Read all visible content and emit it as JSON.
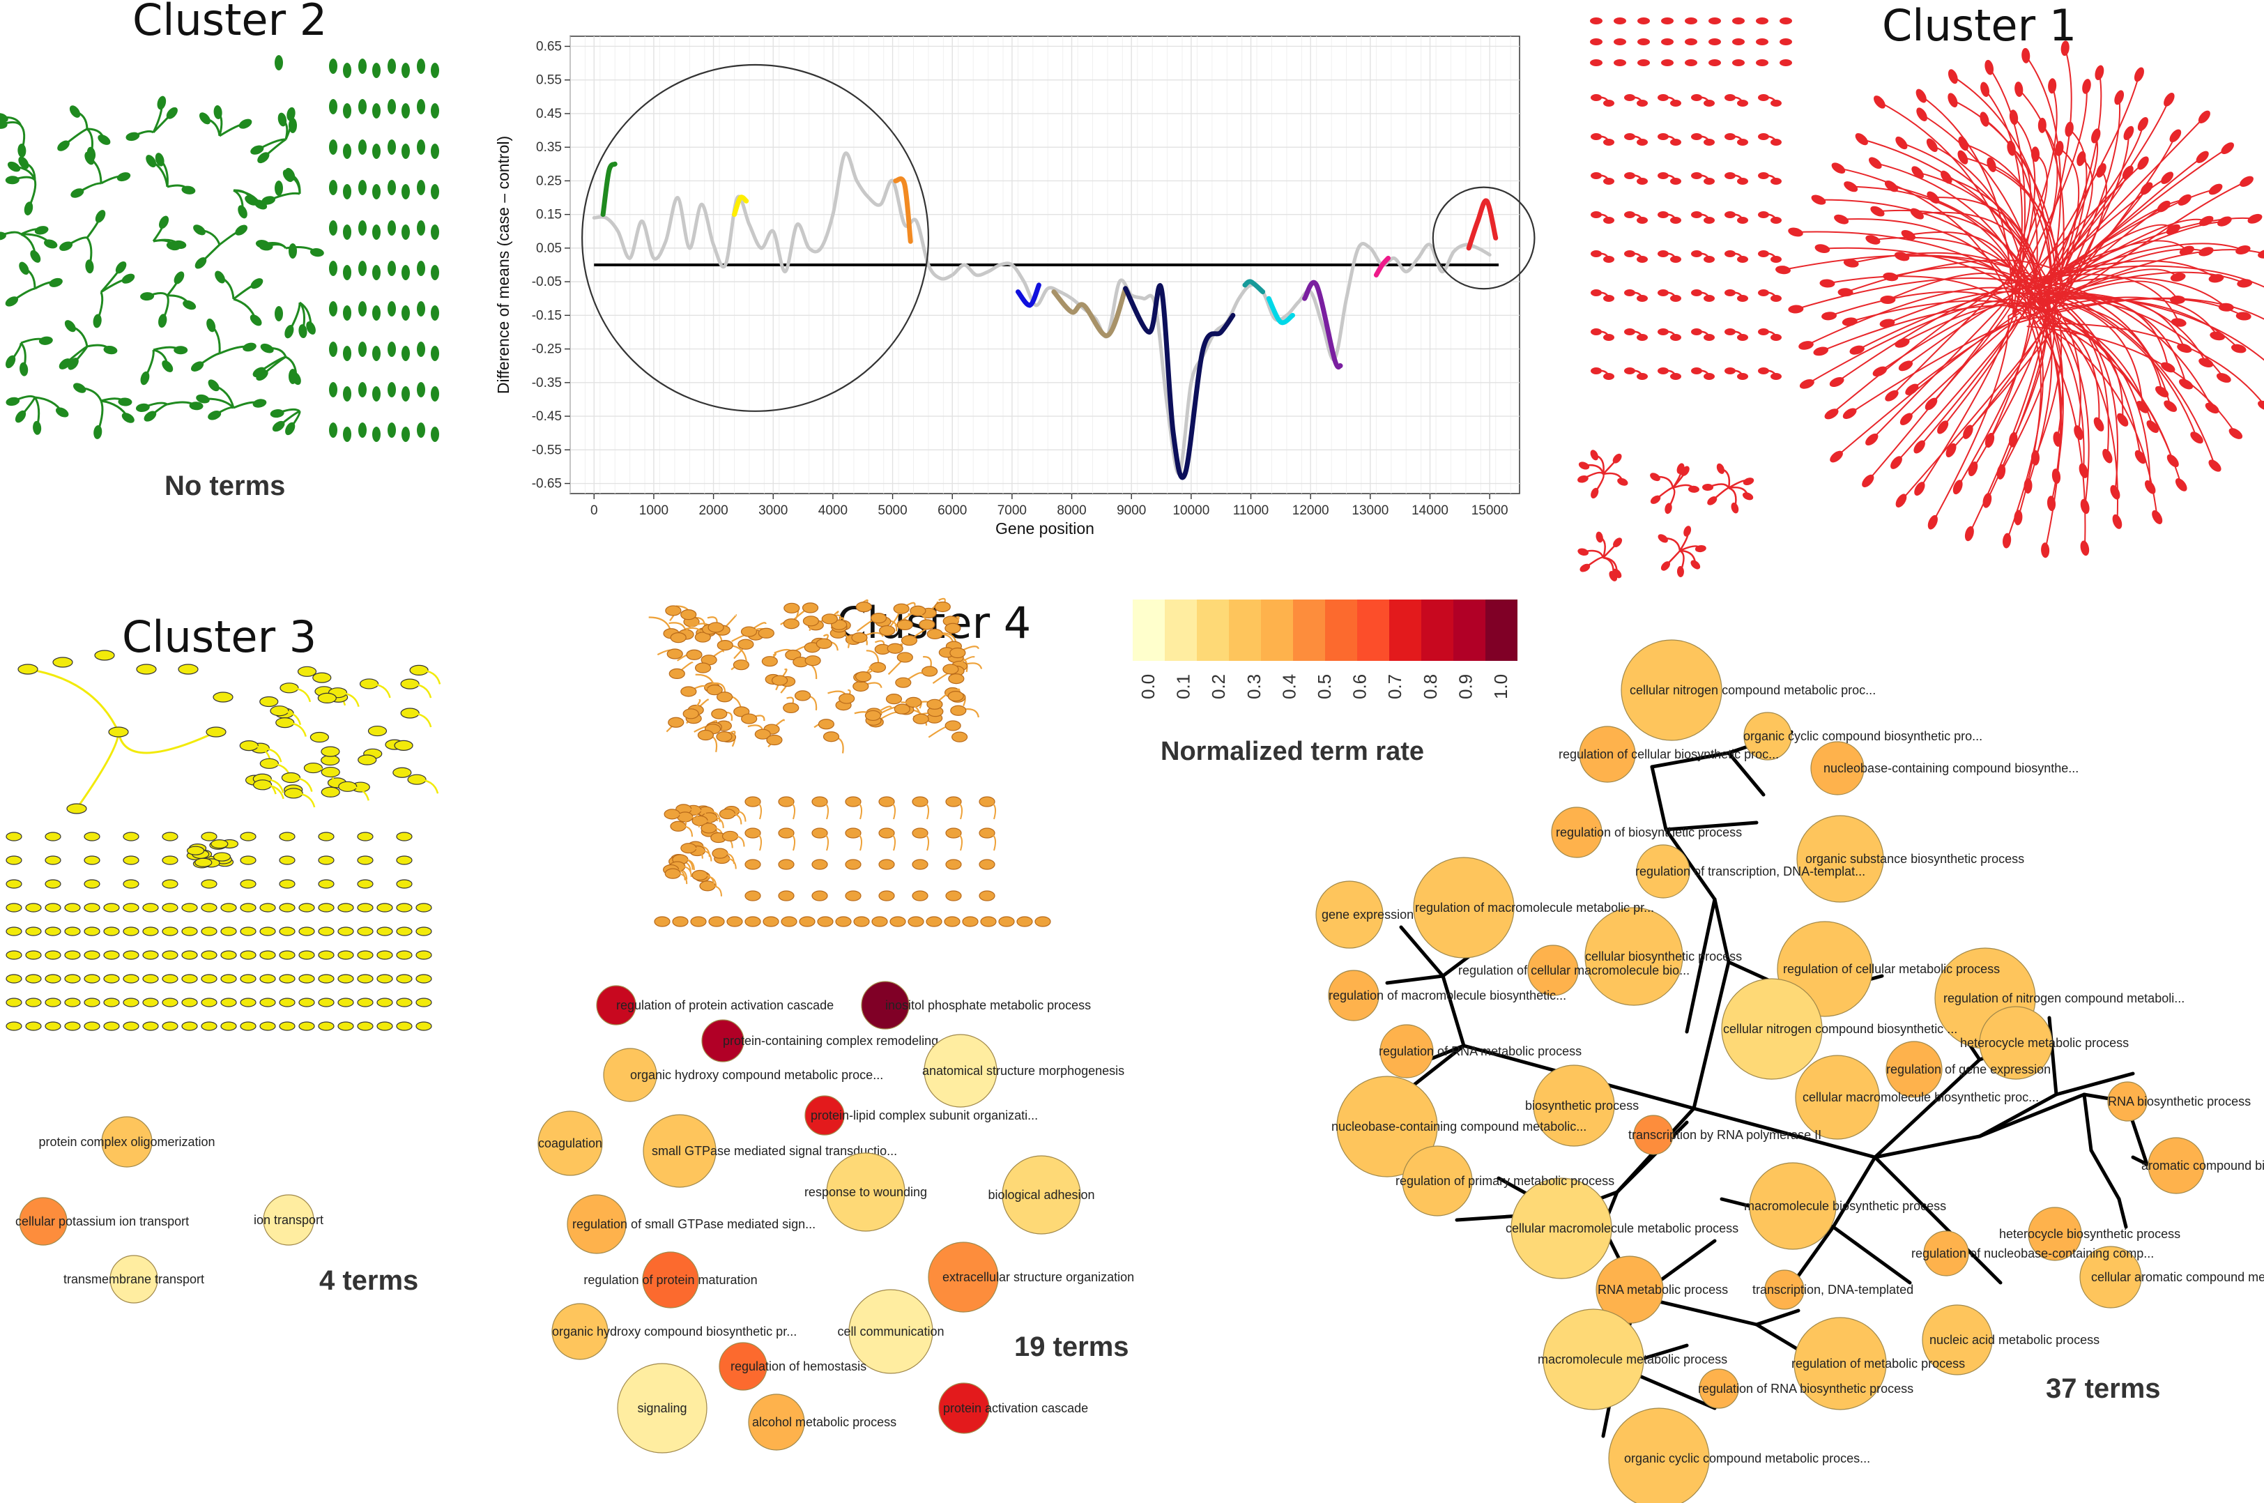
{
  "titles": {
    "cluster1": "Cluster 1",
    "cluster2": "Cluster 2",
    "cluster3": "Cluster 3",
    "cluster4": "Cluster 4"
  },
  "counts": {
    "cluster2": "No terms",
    "cluster3": "4 terms",
    "cluster4": "19 terms",
    "cluster1": "37 terms"
  },
  "colors": {
    "cluster1": "#e8262a",
    "cluster2": "#1f8a1f",
    "cluster3": "#f2ea0a",
    "cluster4": "#eea23a",
    "scale": [
      "#ffffcc",
      "#ffeda0",
      "#fed976",
      "#fec55c",
      "#feb24c",
      "#fd8d3c",
      "#fc6a2e",
      "#fc4e2a",
      "#e31a1c",
      "#c8081f",
      "#b10026",
      "#800026"
    ]
  },
  "legend": {
    "title": "Normalized term rate",
    "ticks": [
      "0.0",
      "0.1",
      "0.2",
      "0.3",
      "0.4",
      "0.5",
      "0.6",
      "0.7",
      "0.8",
      "0.9",
      "1.0"
    ]
  },
  "chart_data": {
    "type": "line",
    "xlabel": "Gene position",
    "ylabel": "Difference of means (case – control)",
    "xlim": [
      -400,
      15500
    ],
    "ylim": [
      -0.68,
      0.68
    ],
    "xticks": [
      0,
      1000,
      2000,
      3000,
      4000,
      5000,
      6000,
      7000,
      8000,
      9000,
      10000,
      11000,
      12000,
      13000,
      14000,
      15000
    ],
    "yticks": [
      0.65,
      0.55,
      0.45,
      0.35,
      0.25,
      0.15,
      0.05,
      -0.05,
      -0.15,
      -0.25,
      -0.35,
      -0.45,
      -0.55,
      -0.65
    ],
    "ytick_labels": [
      "0.65",
      "0.55",
      "0.45",
      "0.35",
      "0.25",
      "0.15",
      "0.05",
      "-0.05",
      "-0.15",
      "-0.25",
      "-0.35",
      "-0.45",
      "-0.55",
      "-0.65"
    ],
    "baseline": {
      "x": [
        0,
        15150
      ],
      "y": 0.0
    },
    "series": [
      {
        "name": "background",
        "color": "#c8c8c8",
        "x": [
          0,
          200,
          400,
          600,
          800,
          1000,
          1200,
          1400,
          1600,
          1800,
          2000,
          2200,
          2400,
          2600,
          2800,
          3000,
          3200,
          3400,
          3600,
          3800,
          4000,
          4200,
          4400,
          4600,
          4800,
          5000,
          5200,
          5400,
          5600,
          5800,
          6000,
          6200,
          6400,
          6600,
          6800,
          7000,
          7200,
          7400,
          7600,
          7800,
          8000,
          8200,
          8400,
          8600,
          8800,
          9000,
          9200,
          9400,
          9600,
          9800,
          10000,
          10200,
          10400,
          10600,
          10800,
          11000,
          11200,
          11400,
          11600,
          11800,
          12000,
          12200,
          12400,
          12600,
          12800,
          13000,
          13200,
          13400,
          13600,
          13800,
          14000,
          14200,
          14400,
          14600,
          14800,
          15000
        ],
        "y": [
          0.14,
          0.14,
          0.1,
          0.02,
          0.13,
          0.02,
          0.07,
          0.2,
          0.05,
          0.18,
          0.06,
          0.0,
          0.2,
          0.12,
          0.05,
          0.1,
          -0.02,
          0.12,
          0.05,
          0.05,
          0.15,
          0.33,
          0.25,
          0.2,
          0.18,
          0.25,
          0.12,
          0.13,
          0.0,
          -0.04,
          -0.03,
          0.0,
          -0.03,
          -0.02,
          0.0,
          0.0,
          -0.05,
          -0.12,
          -0.07,
          -0.08,
          -0.1,
          -0.13,
          -0.16,
          -0.21,
          -0.05,
          -0.09,
          -0.1,
          -0.12,
          -0.42,
          -0.62,
          -0.35,
          -0.27,
          -0.2,
          -0.17,
          -0.1,
          -0.06,
          -0.08,
          -0.16,
          -0.15,
          -0.11,
          -0.08,
          -0.18,
          -0.28,
          -0.1,
          0.05,
          0.05,
          0.0,
          0.02,
          -0.02,
          0.02,
          0.06,
          -0.02,
          0.04,
          0.06,
          0.05,
          0.03
        ]
      },
      {
        "name": "green",
        "color": "#1f8a1f",
        "x": [
          150,
          250,
          350
        ],
        "y": [
          0.15,
          0.28,
          0.3
        ]
      },
      {
        "name": "yellow",
        "color": "#ffee00",
        "x": [
          2350,
          2450,
          2550
        ],
        "y": [
          0.15,
          0.2,
          0.19
        ]
      },
      {
        "name": "orange",
        "color": "#f28a22",
        "x": [
          5050,
          5200,
          5300
        ],
        "y": [
          0.25,
          0.24,
          0.07
        ]
      },
      {
        "name": "blue",
        "color": "#1010dd",
        "x": [
          7100,
          7300,
          7450
        ],
        "y": [
          -0.08,
          -0.12,
          -0.06
        ]
      },
      {
        "name": "tan",
        "color": "#a89268",
        "x": [
          7700,
          8000,
          8200,
          8600,
          8900
        ],
        "y": [
          -0.08,
          -0.14,
          -0.12,
          -0.21,
          -0.07
        ]
      },
      {
        "name": "navy",
        "color": "#0c0f5a",
        "x": [
          8900,
          9300,
          9500,
          9700,
          9900,
          10200,
          10500,
          10700
        ],
        "y": [
          -0.07,
          -0.2,
          -0.07,
          -0.5,
          -0.62,
          -0.25,
          -0.2,
          -0.15
        ]
      },
      {
        "name": "teal",
        "color": "#169a9a",
        "x": [
          10900,
          11000,
          11200
        ],
        "y": [
          -0.06,
          -0.05,
          -0.08
        ]
      },
      {
        "name": "cyan",
        "color": "#00d8e8",
        "x": [
          11300,
          11500,
          11700
        ],
        "y": [
          -0.1,
          -0.17,
          -0.15
        ]
      },
      {
        "name": "purple",
        "color": "#7a1fa0",
        "x": [
          11900,
          12100,
          12400,
          12500
        ],
        "y": [
          -0.1,
          -0.06,
          -0.28,
          -0.3
        ]
      },
      {
        "name": "magenta",
        "color": "#ee1a8a",
        "x": [
          13100,
          13200,
          13300
        ],
        "y": [
          -0.03,
          0.0,
          0.02
        ]
      },
      {
        "name": "red",
        "color": "#e8262a",
        "x": [
          14650,
          14800,
          14950,
          15100
        ],
        "y": [
          0.05,
          0.13,
          0.19,
          0.08
        ]
      }
    ],
    "annotations": [
      {
        "type": "circle",
        "label": "left cluster circle",
        "cx_data": 2700,
        "cy_data": 0.08,
        "r_data": 2900
      },
      {
        "type": "circle",
        "label": "right cluster circle",
        "cx_data": 14900,
        "cy_data": 0.08,
        "r_data": 850
      }
    ]
  },
  "cluster3_terms": [
    {
      "label": "protein complex oligomerization",
      "rate": 0.25
    },
    {
      "label": "cellular potassium ion transport",
      "rate": 0.45
    },
    {
      "label": "ion transport",
      "rate": 0.1
    },
    {
      "label": "transmembrane transport",
      "rate": 0.1
    }
  ],
  "cluster4_terms": [
    {
      "label": "regulation of protein activation cascade",
      "rate": 0.8
    },
    {
      "label": "inositol phosphate metabolic process",
      "rate": 1.0
    },
    {
      "label": "protein-containing complex remodeling",
      "rate": 0.9
    },
    {
      "label": "organic hydroxy compound metabolic proce...",
      "rate": 0.25
    },
    {
      "label": "anatomical structure morphogenesis",
      "rate": 0.1
    },
    {
      "label": "protein-lipid complex subunit organizati...",
      "rate": 0.7
    },
    {
      "label": "coagulation",
      "rate": 0.3
    },
    {
      "label": "small GTPase mediated signal transductio...",
      "rate": 0.25
    },
    {
      "label": "response to wounding",
      "rate": 0.2
    },
    {
      "label": "biological adhesion",
      "rate": 0.2
    },
    {
      "label": "regulation of small GTPase mediated sign...",
      "rate": 0.4
    },
    {
      "label": "regulation of protein maturation",
      "rate": 0.55
    },
    {
      "label": "extracellular structure organization",
      "rate": 0.45
    },
    {
      "label": "organic hydroxy compound biosynthetic pr...",
      "rate": 0.25
    },
    {
      "label": "cell communication",
      "rate": 0.1
    },
    {
      "label": "regulation of hemostasis",
      "rate": 0.55
    },
    {
      "label": "signaling",
      "rate": 0.1
    },
    {
      "label": "alcohol metabolic process",
      "rate": 0.4
    },
    {
      "label": "protein activation cascade",
      "rate": 0.7
    }
  ],
  "cluster1_terms": [
    {
      "label": "cellular nitrogen compound metabolic proc...",
      "rate": 0.25
    },
    {
      "label": "regulation of cellular biosynthetic proc...",
      "rate": 0.35
    },
    {
      "label": "organic cyclic compound biosynthetic pro...",
      "rate": 0.3
    },
    {
      "label": "nucleobase-containing compound biosynthe...",
      "rate": 0.35
    },
    {
      "label": "regulation of biosynthetic process",
      "rate": 0.35
    },
    {
      "label": "organic substance biosynthetic process",
      "rate": 0.25
    },
    {
      "label": "regulation of transcription, DNA-templat...",
      "rate": 0.3
    },
    {
      "label": "gene expression",
      "rate": 0.25
    },
    {
      "label": "regulation of macromolecule metabolic pr...",
      "rate": 0.25
    },
    {
      "label": "cellular biosynthetic process",
      "rate": 0.25
    },
    {
      "label": "regulation of cellular macromolecule bio...",
      "rate": 0.35
    },
    {
      "label": "regulation of cellular metabolic process",
      "rate": 0.25
    },
    {
      "label": "regulation of macromolecule biosynthetic...",
      "rate": 0.35
    },
    {
      "label": "regulation of nitrogen compound metaboli...",
      "rate": 0.25
    },
    {
      "label": "cellular nitrogen compound biosynthetic ...",
      "rate": 0.2
    },
    {
      "label": "regulation of RNA metabolic process",
      "rate": 0.35
    },
    {
      "label": "heterocycle metabolic process",
      "rate": 0.25
    },
    {
      "label": "regulation of gene expression",
      "rate": 0.35
    },
    {
      "label": "biosynthetic process",
      "rate": 0.25
    },
    {
      "label": "cellular macromolecule biosynthetic proc...",
      "rate": 0.3
    },
    {
      "label": "RNA biosynthetic process",
      "rate": 0.4
    },
    {
      "label": "nucleobase-containing compound metabolic...",
      "rate": 0.25
    },
    {
      "label": "transcription by RNA polymerase II",
      "rate": 0.45
    },
    {
      "label": "aromatic compound biosynthetic process",
      "rate": 0.4
    },
    {
      "label": "regulation of primary metabolic process",
      "rate": 0.25
    },
    {
      "label": "macromolecule biosynthetic process",
      "rate": 0.25
    },
    {
      "label": "heterocycle biosynthetic process",
      "rate": 0.35
    },
    {
      "label": "cellular macromolecule metabolic process",
      "rate": 0.2
    },
    {
      "label": "regulation of nucleobase-containing comp...",
      "rate": 0.35
    },
    {
      "label": "cellular aromatic compound metabolic pro...",
      "rate": 0.25
    },
    {
      "label": "RNA metabolic process",
      "rate": 0.35
    },
    {
      "label": "transcription, DNA-templated",
      "rate": 0.35
    },
    {
      "label": "nucleic acid metabolic process",
      "rate": 0.3
    },
    {
      "label": "macromolecule metabolic process",
      "rate": 0.15
    },
    {
      "label": "regulation of metabolic process",
      "rate": 0.25
    },
    {
      "label": "regulation of RNA biosynthetic process",
      "rate": 0.35
    },
    {
      "label": "organic cyclic compound metabolic proces...",
      "rate": 0.25
    }
  ]
}
